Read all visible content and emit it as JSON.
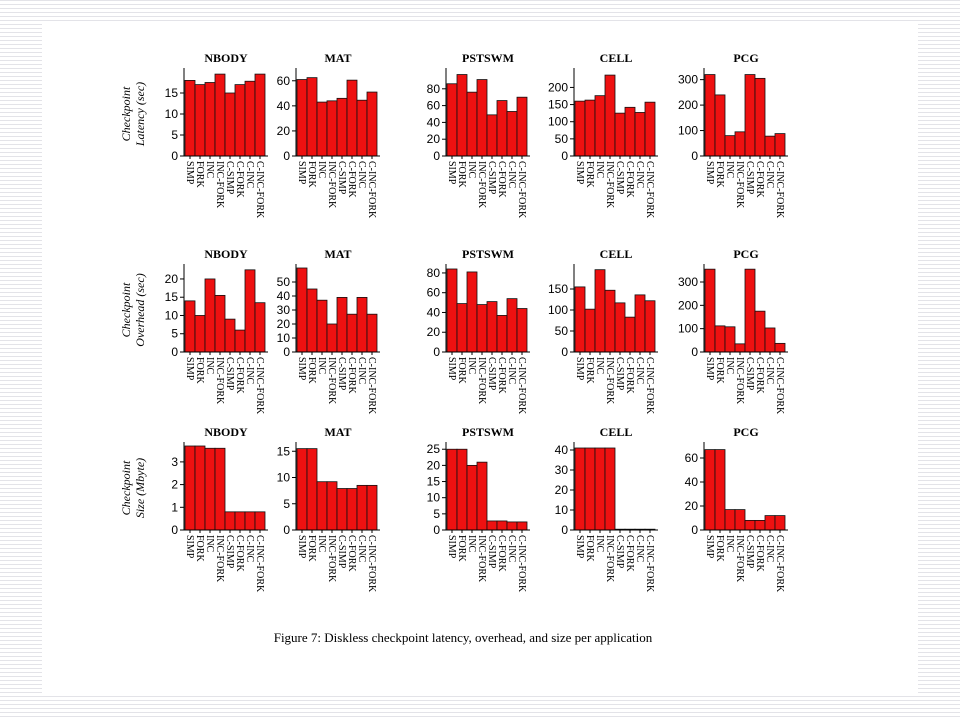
{
  "caption": "Figure 7: Diskless checkpoint latency, overhead, and size per application",
  "rows": [
    {
      "label_line1": "Checkpoint",
      "label_line2": "Latency (sec)"
    },
    {
      "label_line1": "Checkpoint",
      "label_line2": "Overhead (sec)"
    },
    {
      "label_line1": "Checkpoint",
      "label_line2": "Size (Mbyte)"
    }
  ],
  "chart_data": [
    {
      "type": "bar",
      "row": 0,
      "col": 0,
      "title": "NBODY",
      "categories": [
        "SIMP",
        "FORK",
        "INC",
        "INC-FORK",
        "C-SIMP",
        "C-FORK",
        "C-INC",
        "C-INC-FORK"
      ],
      "values": [
        18,
        17,
        17.5,
        19.5,
        15,
        17,
        17.8,
        19.5
      ],
      "ylim": [
        0,
        20
      ],
      "yticks": [
        0,
        5,
        10,
        15
      ]
    },
    {
      "type": "bar",
      "row": 0,
      "col": 1,
      "title": "MAT",
      "categories": [
        "SIMP",
        "FORK",
        "INC",
        "INC-FORK",
        "C-SIMP",
        "C-FORK",
        "C-INC",
        "C-INC-FORK"
      ],
      "values": [
        61,
        62.5,
        43,
        44,
        46,
        60.5,
        44.5,
        51
      ],
      "ylim": [
        0,
        67
      ],
      "yticks": [
        0,
        20,
        40,
        60
      ]
    },
    {
      "type": "bar",
      "row": 0,
      "col": 2,
      "title": "PSTSWM",
      "categories": [
        "SIMP",
        "FORK",
        "INC",
        "INC-FORK",
        "C-SIMP",
        "C-FORK",
        "C-INC",
        "C-INC-FORK"
      ],
      "values": [
        86,
        97,
        76,
        91,
        49,
        66,
        53,
        70
      ],
      "ylim": [
        0,
        100
      ],
      "yticks": [
        0,
        20,
        40,
        60,
        80
      ]
    },
    {
      "type": "bar",
      "row": 0,
      "col": 3,
      "title": "CELL",
      "categories": [
        "SIMP",
        "FORK",
        "INC",
        "INC-FORK",
        "C-SIMP",
        "C-FORK",
        "C-INC",
        "C-INC-FORK"
      ],
      "values": [
        160,
        163,
        176,
        236,
        125,
        142,
        127,
        157
      ],
      "ylim": [
        0,
        245
      ],
      "yticks": [
        0,
        50,
        100,
        150,
        200
      ]
    },
    {
      "type": "bar",
      "row": 0,
      "col": 4,
      "title": "PCG",
      "categories": [
        "SIMP",
        "FORK",
        "INC",
        "INC-FORK",
        "C-SIMP",
        "C-FORK",
        "C-INC",
        "C-INC-FORK"
      ],
      "values": [
        320,
        240,
        80,
        95,
        320,
        305,
        78,
        88
      ],
      "ylim": [
        0,
        330
      ],
      "yticks": [
        0,
        100,
        200,
        300
      ]
    },
    {
      "type": "bar",
      "row": 1,
      "col": 0,
      "title": "NBODY",
      "categories": [
        "SIMP",
        "FORK",
        "INC",
        "INC-FORK",
        "C-SIMP",
        "C-FORK",
        "C-INC",
        "C-INC-FORK"
      ],
      "values": [
        14,
        10,
        20,
        15.5,
        9,
        6,
        22.5,
        13.5
      ],
      "ylim": [
        0,
        23
      ],
      "yticks": [
        0,
        5,
        10,
        15,
        20
      ]
    },
    {
      "type": "bar",
      "row": 1,
      "col": 1,
      "title": "MAT",
      "categories": [
        "SIMP",
        "FORK",
        "INC",
        "INC-FORK",
        "C-SIMP",
        "C-FORK",
        "C-INC",
        "C-INC-FORK"
      ],
      "values": [
        60,
        45,
        37,
        20,
        39,
        27,
        39,
        27
      ],
      "ylim": [
        0,
        60
      ],
      "yticks": [
        0,
        10,
        20,
        30,
        40,
        50
      ]
    },
    {
      "type": "bar",
      "row": 1,
      "col": 2,
      "title": "PSTSWM",
      "categories": [
        "SIMP",
        "FORK",
        "INC",
        "INC-FORK",
        "C-SIMP",
        "C-FORK",
        "C-INC",
        "C-INC-FORK"
      ],
      "values": [
        84,
        49,
        81,
        48,
        51,
        37,
        54,
        44
      ],
      "ylim": [
        0,
        85
      ],
      "yticks": [
        0,
        20,
        40,
        60,
        80
      ]
    },
    {
      "type": "bar",
      "row": 1,
      "col": 3,
      "title": "CELL",
      "categories": [
        "SIMP",
        "FORK",
        "INC",
        "INC-FORK",
        "C-SIMP",
        "C-FORK",
        "C-INC",
        "C-INC-FORK"
      ],
      "values": [
        155,
        102,
        196,
        147,
        117,
        83,
        136,
        122
      ],
      "ylim": [
        0,
        200
      ],
      "yticks": [
        0,
        50,
        100,
        150
      ]
    },
    {
      "type": "bar",
      "row": 1,
      "col": 4,
      "title": "PCG",
      "categories": [
        "SIMP",
        "FORK",
        "INC",
        "INC-FORK",
        "C-SIMP",
        "C-FORK",
        "C-INC",
        "C-INC-FORK"
      ],
      "values": [
        355,
        112,
        108,
        35,
        355,
        175,
        103,
        37
      ],
      "ylim": [
        0,
        360
      ],
      "yticks": [
        0,
        100,
        200,
        300
      ]
    },
    {
      "type": "bar",
      "row": 2,
      "col": 0,
      "title": "NBODY",
      "categories": [
        "SIMP",
        "FORK",
        "INC",
        "INC-FORK",
        "C-SIMP",
        "C-FORK",
        "C-INC",
        "C-INC-FORK"
      ],
      "values": [
        3.7,
        3.7,
        3.6,
        3.6,
        0.8,
        0.8,
        0.8,
        0.8
      ],
      "ylim": [
        0,
        3.7
      ],
      "yticks": [
        0,
        1,
        2,
        3
      ]
    },
    {
      "type": "bar",
      "row": 2,
      "col": 1,
      "title": "MAT",
      "categories": [
        "SIMP",
        "FORK",
        "INC",
        "INC-FORK",
        "C-SIMP",
        "C-FORK",
        "C-INC",
        "C-INC-FORK"
      ],
      "values": [
        15.5,
        15.5,
        9.2,
        9.2,
        7.9,
        7.9,
        8.5,
        8.5
      ],
      "ylim": [
        0,
        16
      ],
      "yticks": [
        0,
        5,
        10,
        15
      ]
    },
    {
      "type": "bar",
      "row": 2,
      "col": 2,
      "title": "PSTSWM",
      "categories": [
        "SIMP",
        "FORK",
        "INC",
        "INC-FORK",
        "C-SIMP",
        "C-FORK",
        "C-INC",
        "C-INC-FORK"
      ],
      "values": [
        25,
        25,
        20,
        21,
        2.8,
        2.8,
        2.5,
        2.5
      ],
      "ylim": [
        0,
        26
      ],
      "yticks": [
        0,
        5,
        10,
        15,
        20,
        25
      ]
    },
    {
      "type": "bar",
      "row": 2,
      "col": 3,
      "title": "CELL",
      "categories": [
        "SIMP",
        "FORK",
        "INC",
        "INC-FORK",
        "C-SIMP",
        "C-FORK",
        "C-INC",
        "C-INC-FORK"
      ],
      "values": [
        41,
        41,
        41,
        41,
        0.4,
        0.4,
        0.4,
        0.4
      ],
      "ylim": [
        0,
        42
      ],
      "yticks": [
        0,
        10,
        20,
        30,
        40
      ]
    },
    {
      "type": "bar",
      "row": 2,
      "col": 4,
      "title": "PCG",
      "categories": [
        "SIMP",
        "FORK",
        "INC",
        "INC-FORK",
        "C-SIMP",
        "C-FORK",
        "C-INC",
        "C-INC-FORK"
      ],
      "values": [
        67,
        67,
        17,
        17,
        8,
        8,
        12,
        12
      ],
      "ylim": [
        0,
        70
      ],
      "yticks": [
        0,
        20,
        40,
        60
      ]
    }
  ]
}
